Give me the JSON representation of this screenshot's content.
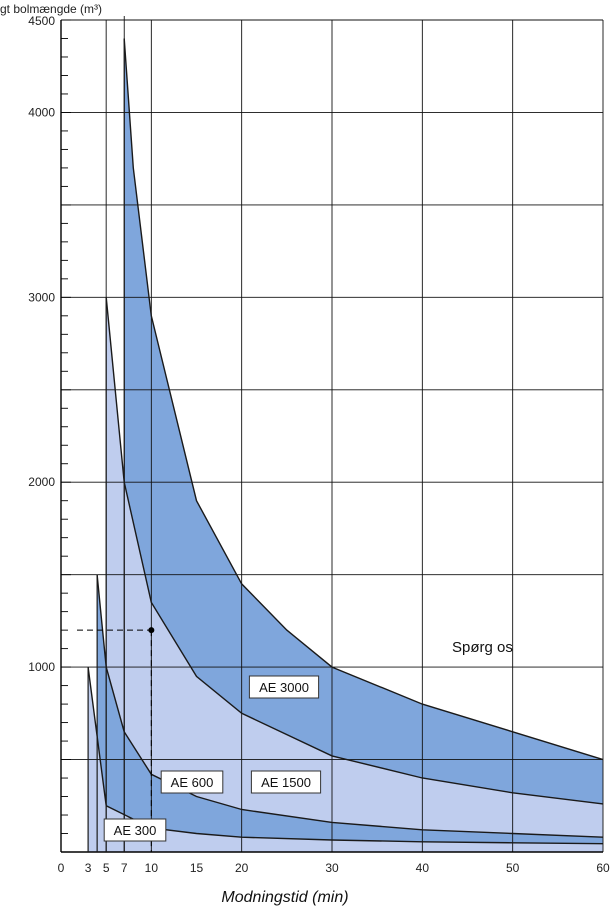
{
  "chart_data": {
    "type": "area",
    "title": "",
    "ylabel": "gt bolmængde (m³)",
    "xlabel": "Modningstid (min)",
    "xlim": [
      0,
      60
    ],
    "ylim": [
      0,
      4500
    ],
    "x_ticks": [
      0,
      3,
      5,
      7,
      10,
      15,
      20,
      30,
      40,
      50,
      60
    ],
    "y_ticks": [
      1000,
      2000,
      3000,
      4000,
      4500
    ],
    "colors": {
      "dark": "#7fa6dc",
      "light": "#bfcdee",
      "line": "#1a1a1a",
      "grid": "#111111"
    },
    "series": [
      {
        "name": "AE 300",
        "x": [
          3,
          5,
          10,
          15,
          20,
          30,
          40,
          50,
          60
        ],
        "y": [
          1000,
          250,
          130,
          100,
          80,
          65,
          55,
          50,
          45
        ]
      },
      {
        "name": "AE 600",
        "x": [
          4,
          5,
          7,
          10,
          15,
          20,
          30,
          40,
          50,
          60
        ],
        "y": [
          1500,
          1000,
          650,
          420,
          300,
          230,
          160,
          120,
          100,
          80
        ]
      },
      {
        "name": "AE 1500",
        "x": [
          5,
          7,
          10,
          15,
          20,
          30,
          40,
          50,
          60
        ],
        "y": [
          3000,
          2000,
          1350,
          950,
          750,
          520,
          400,
          320,
          260
        ]
      },
      {
        "name": "AE 3000",
        "x": [
          7,
          8,
          10,
          15,
          20,
          25,
          30,
          40,
          50,
          60
        ],
        "y": [
          4400,
          3700,
          2900,
          1900,
          1450,
          1200,
          1000,
          800,
          650,
          500
        ]
      }
    ],
    "reference_point": {
      "x": 10,
      "y": 1200
    },
    "annotation": "Spørg os"
  }
}
